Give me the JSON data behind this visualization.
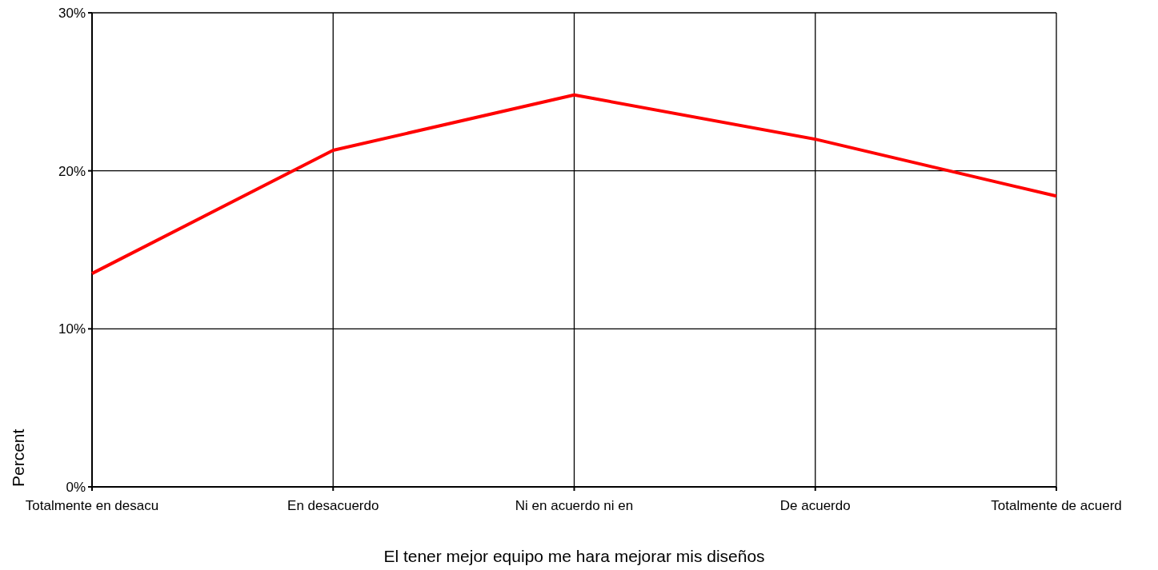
{
  "chart_data": {
    "type": "line",
    "xlabel": "El tener mejor equipo me hara mejorar mis diseños",
    "ylabel": "Percent",
    "categories": [
      "Totalmente en desacu",
      "En desacuerdo",
      "Ni en acuerdo ni en",
      "De acuerdo",
      "Totalmente de acuerd"
    ],
    "series": [
      {
        "color": "#ff0000",
        "values": [
          13.5,
          21.3,
          24.8,
          22.0,
          18.4
        ]
      }
    ],
    "ylim": [
      0,
      30
    ],
    "yticks": [
      {
        "value": 0,
        "label": "0%"
      },
      {
        "value": 10,
        "label": "10%"
      },
      {
        "value": 20,
        "label": "20%"
      },
      {
        "value": 30,
        "label": "30%"
      }
    ],
    "grid": true,
    "marker": "none",
    "line_style": "solid"
  }
}
